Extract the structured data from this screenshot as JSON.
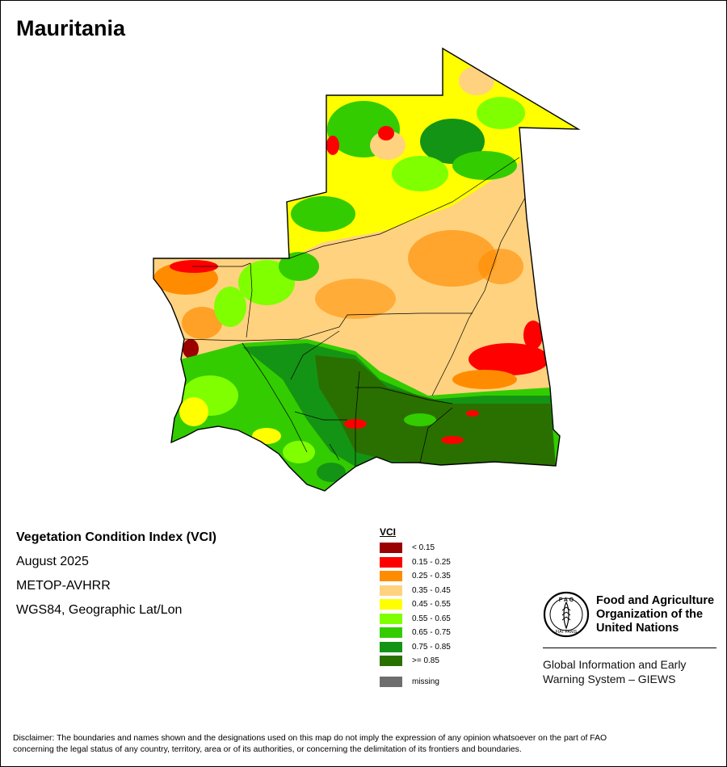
{
  "title": "Mauritania",
  "info": {
    "product": "Vegetation Condition Index (VCI)",
    "period": "August 2025",
    "sensor": "METOP-AVHRR",
    "projection": "WGS84, Geographic Lat/Lon"
  },
  "legend": {
    "title": "VCI",
    "items": [
      {
        "label": "< 0.15",
        "color": "#9a0000"
      },
      {
        "label": "0.15 - 0.25",
        "color": "#ff0000"
      },
      {
        "label": "0.25 - 0.35",
        "color": "#ff8c00"
      },
      {
        "label": "0.35 - 0.45",
        "color": "#ffd27f"
      },
      {
        "label": "0.45 - 0.55",
        "color": "#ffff00"
      },
      {
        "label": "0.55 - 0.65",
        "color": "#7fff00"
      },
      {
        "label": "0.65 - 0.75",
        "color": "#33cc00"
      },
      {
        "label": "0.75 - 0.85",
        "color": "#149414"
      },
      {
        "label": ">= 0.85",
        "color": "#2a7000"
      }
    ],
    "missing": {
      "label": "missing",
      "color": "#6e6e6e"
    }
  },
  "fao": {
    "name_line1": "Food and Agriculture",
    "name_line2": "Organization of the",
    "name_line3": "United Nations",
    "emblem_letters": "F A O",
    "emblem_motto": "FIAT PANIS",
    "giews_line1": "Global Information and Early",
    "giews_line2": "Warning System – GIEWS"
  },
  "disclaimer_line1": "Disclaimer: The boundaries and names shown and the designations used on this map do not imply the expression of any opinion whatsoever on the part of FAO",
  "disclaimer_line2": "concerning the legal status of any country, territory, area or of its authorities, or concerning the delimitation of its frontiers and boundaries."
}
